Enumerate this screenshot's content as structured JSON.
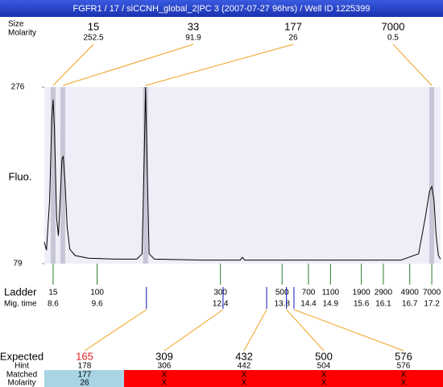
{
  "title": "FGFR1 / 17 / siCCNH_global_2|PC 3 (2007-07-27 96hrs) / Well ID 1225399",
  "peaks": {
    "size_label": "Size",
    "molarity_label": "Molarity",
    "sizes": [
      15,
      33,
      177,
      7000
    ],
    "molarities": [
      252.5,
      91.9,
      26,
      0.5
    ],
    "times": [
      8.6,
      8.82,
      10.7,
      17.2
    ]
  },
  "chart_data": {
    "type": "line",
    "y_label": "Fluo.",
    "ylim": [
      79,
      276
    ],
    "yticks": [
      79,
      276
    ],
    "xlim": [
      8.4,
      17.4
    ],
    "color": "#000000",
    "x": [
      8.4,
      8.45,
      8.52,
      8.57,
      8.6,
      8.63,
      8.68,
      8.72,
      8.76,
      8.8,
      8.83,
      8.87,
      8.92,
      8.98,
      9.1,
      9.4,
      10.0,
      10.5,
      10.62,
      10.67,
      10.7,
      10.73,
      10.78,
      10.9,
      12.0,
      12.85,
      12.9,
      12.95,
      14.0,
      16.5,
      16.9,
      17.05,
      17.15,
      17.2,
      17.25,
      17.3,
      17.35,
      17.4
    ],
    "values": [
      103,
      94,
      150,
      240,
      262,
      230,
      130,
      110,
      150,
      195,
      199,
      170,
      120,
      95,
      88,
      85,
      84,
      84,
      90,
      200,
      276,
      200,
      90,
      84,
      83,
      83,
      86,
      83,
      83,
      83,
      90,
      130,
      160,
      165,
      150,
      110,
      88,
      84
    ]
  },
  "ladder": {
    "label": "Ladder",
    "time_label": "Mig. time",
    "sizes": [
      15,
      100,
      300,
      500,
      700,
      1100,
      1900,
      2900,
      4900,
      7000
    ],
    "times": [
      8.6,
      9.6,
      12.4,
      13.8,
      14.4,
      14.9,
      15.6,
      16.1,
      16.7,
      17.2
    ]
  },
  "expected": {
    "expected_label": "Expected",
    "hint_label": "Hint",
    "matched_label": "Matched",
    "molarity_label": "Molarity",
    "expected": [
      165,
      309,
      432,
      500,
      576
    ],
    "times": [
      10.72,
      12.46,
      13.45,
      13.9,
      14.07
    ],
    "hints": [
      178,
      306,
      442,
      504,
      576
    ],
    "matched": [
      177,
      "X",
      "X",
      "X",
      "X"
    ],
    "molarity": [
      26,
      "X",
      "X",
      "X",
      "X"
    ]
  }
}
